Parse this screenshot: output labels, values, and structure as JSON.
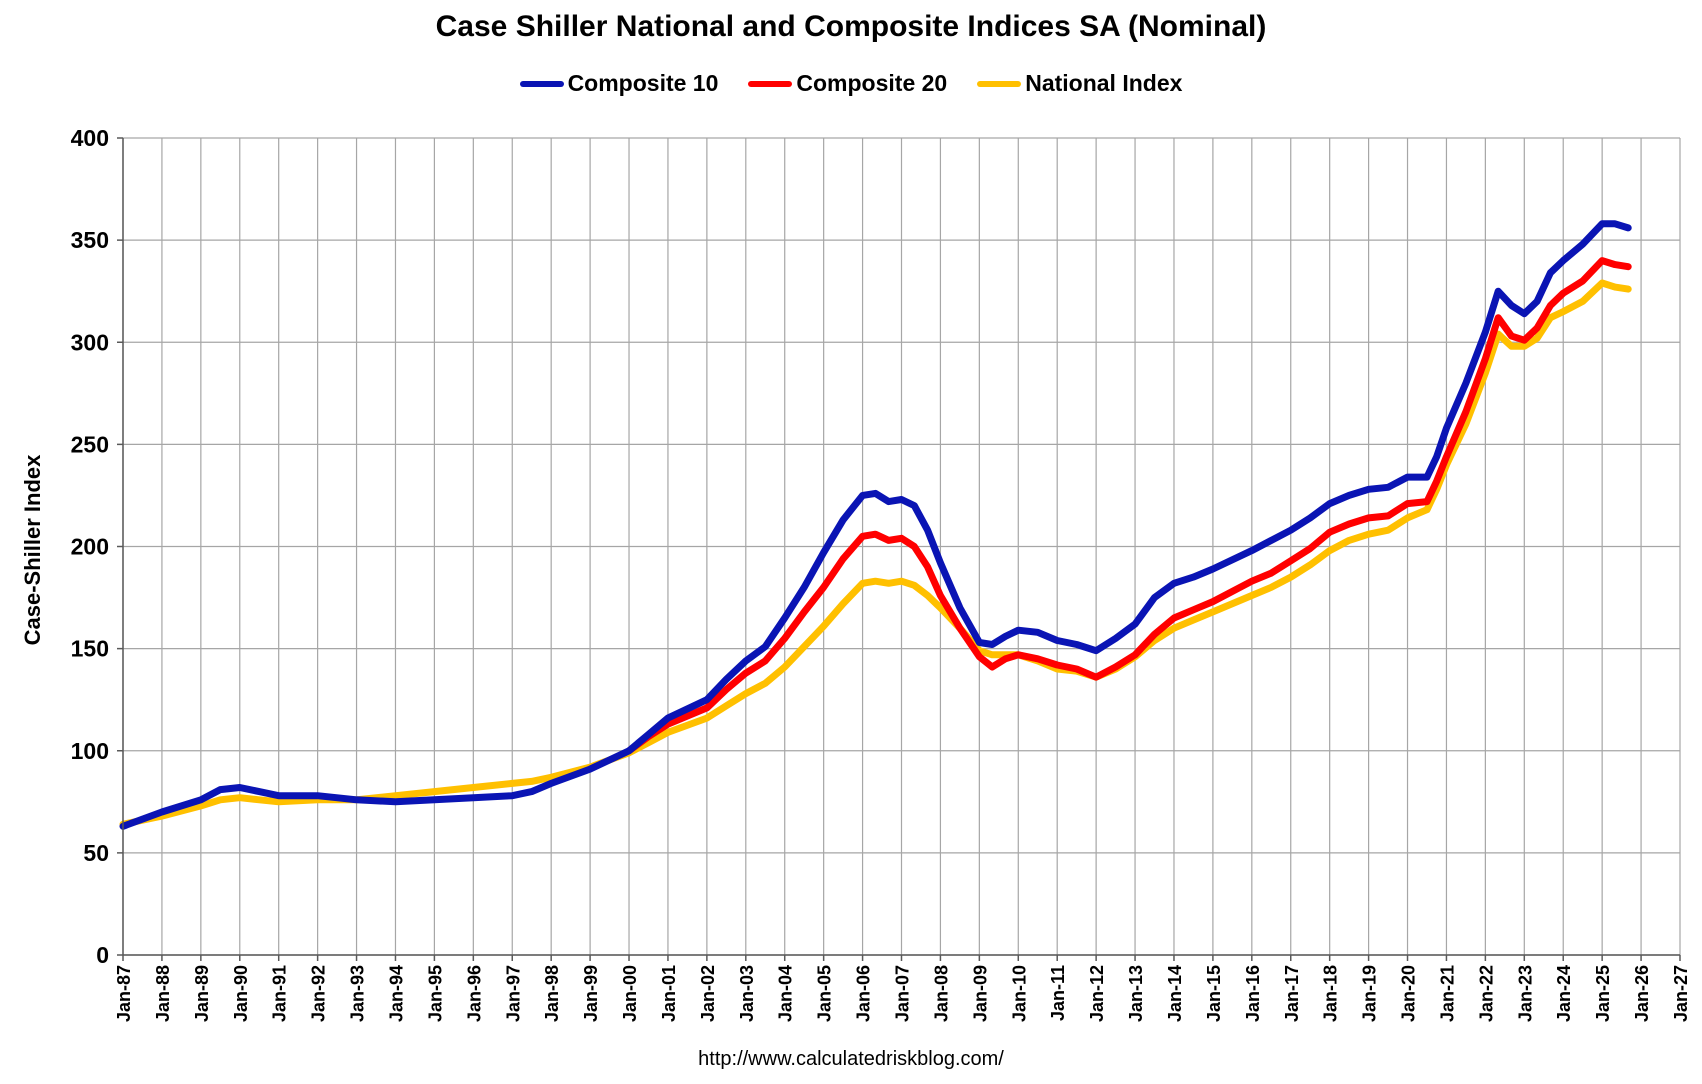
{
  "title": "Case Shiller National and Composite Indices SA (Nominal)",
  "source": "http://www.calculatedriskblog.com/",
  "chart_data": {
    "type": "line",
    "title": "Case Shiller National and Composite Indices SA (Nominal)",
    "xlabel": "",
    "ylabel": "Case-Shiller Index",
    "ylim": [
      0,
      400
    ],
    "yticks": [
      0,
      50,
      100,
      150,
      200,
      250,
      300,
      350,
      400
    ],
    "xlim": [
      1987,
      2027
    ],
    "xtick_labels": [
      "Jan-87",
      "Jan-88",
      "Jan-89",
      "Jan-90",
      "Jan-91",
      "Jan-92",
      "Jan-93",
      "Jan-94",
      "Jan-95",
      "Jan-96",
      "Jan-97",
      "Jan-98",
      "Jan-99",
      "Jan-00",
      "Jan-01",
      "Jan-02",
      "Jan-03",
      "Jan-04",
      "Jan-05",
      "Jan-06",
      "Jan-07",
      "Jan-08",
      "Jan-09",
      "Jan-10",
      "Jan-11",
      "Jan-12",
      "Jan-13",
      "Jan-14",
      "Jan-15",
      "Jan-16",
      "Jan-17",
      "Jan-18",
      "Jan-19",
      "Jan-20",
      "Jan-21",
      "Jan-22",
      "Jan-23",
      "Jan-24",
      "Jan-25",
      "Jan-26",
      "Jan-27"
    ],
    "grid": true,
    "legend": "top-center",
    "series": [
      {
        "name": "Composite 10",
        "color": "#0a14b4",
        "points": [
          [
            1987.0,
            63
          ],
          [
            1988.0,
            70
          ],
          [
            1989.0,
            76
          ],
          [
            1989.5,
            81
          ],
          [
            1990.0,
            82
          ],
          [
            1990.5,
            80
          ],
          [
            1991.0,
            78
          ],
          [
            1992.0,
            78
          ],
          [
            1993.0,
            76
          ],
          [
            1994.0,
            75
          ],
          [
            1995.0,
            76
          ],
          [
            1996.0,
            77
          ],
          [
            1997.0,
            78
          ],
          [
            1997.5,
            80
          ],
          [
            1998.0,
            84
          ],
          [
            1999.0,
            91
          ],
          [
            2000.0,
            100
          ],
          [
            2000.5,
            108
          ],
          [
            2001.0,
            116
          ],
          [
            2002.0,
            125
          ],
          [
            2002.5,
            135
          ],
          [
            2003.0,
            144
          ],
          [
            2003.5,
            151
          ],
          [
            2004.0,
            165
          ],
          [
            2004.5,
            180
          ],
          [
            2005.0,
            197
          ],
          [
            2005.5,
            213
          ],
          [
            2006.0,
            225
          ],
          [
            2006.33,
            226
          ],
          [
            2006.67,
            222
          ],
          [
            2007.0,
            223
          ],
          [
            2007.33,
            220
          ],
          [
            2007.67,
            208
          ],
          [
            2008.0,
            192
          ],
          [
            2008.5,
            170
          ],
          [
            2009.0,
            153
          ],
          [
            2009.33,
            152
          ],
          [
            2009.67,
            156
          ],
          [
            2010.0,
            159
          ],
          [
            2010.5,
            158
          ],
          [
            2011.0,
            154
          ],
          [
            2011.5,
            152
          ],
          [
            2012.0,
            149
          ],
          [
            2012.5,
            155
          ],
          [
            2013.0,
            162
          ],
          [
            2013.5,
            175
          ],
          [
            2014.0,
            182
          ],
          [
            2014.5,
            185
          ],
          [
            2015.0,
            189
          ],
          [
            2016.0,
            198
          ],
          [
            2016.5,
            203
          ],
          [
            2017.0,
            208
          ],
          [
            2017.5,
            214
          ],
          [
            2018.0,
            221
          ],
          [
            2018.5,
            225
          ],
          [
            2019.0,
            228
          ],
          [
            2019.5,
            229
          ],
          [
            2020.0,
            234
          ],
          [
            2020.5,
            234
          ],
          [
            2020.75,
            244
          ],
          [
            2021.0,
            258
          ],
          [
            2021.5,
            280
          ],
          [
            2022.0,
            305
          ],
          [
            2022.33,
            325
          ],
          [
            2022.67,
            318
          ],
          [
            2023.0,
            314
          ],
          [
            2023.33,
            320
          ],
          [
            2023.67,
            334
          ],
          [
            2024.0,
            340
          ],
          [
            2024.5,
            348
          ],
          [
            2025.0,
            358
          ],
          [
            2025.33,
            358
          ],
          [
            2025.67,
            356
          ]
        ]
      },
      {
        "name": "Composite 20",
        "color": "#ff0000",
        "points": [
          [
            2000.0,
            100
          ],
          [
            2000.5,
            107
          ],
          [
            2001.0,
            113
          ],
          [
            2002.0,
            121
          ],
          [
            2002.5,
            130
          ],
          [
            2003.0,
            138
          ],
          [
            2003.5,
            144
          ],
          [
            2004.0,
            155
          ],
          [
            2004.5,
            168
          ],
          [
            2005.0,
            180
          ],
          [
            2005.5,
            194
          ],
          [
            2006.0,
            205
          ],
          [
            2006.33,
            206
          ],
          [
            2006.67,
            203
          ],
          [
            2007.0,
            204
          ],
          [
            2007.33,
            200
          ],
          [
            2007.67,
            190
          ],
          [
            2008.0,
            176
          ],
          [
            2008.5,
            160
          ],
          [
            2009.0,
            146
          ],
          [
            2009.33,
            141
          ],
          [
            2009.67,
            145
          ],
          [
            2010.0,
            147
          ],
          [
            2010.5,
            145
          ],
          [
            2011.0,
            142
          ],
          [
            2011.5,
            140
          ],
          [
            2012.0,
            136
          ],
          [
            2012.5,
            141
          ],
          [
            2013.0,
            147
          ],
          [
            2013.5,
            157
          ],
          [
            2014.0,
            165
          ],
          [
            2014.5,
            169
          ],
          [
            2015.0,
            173
          ],
          [
            2016.0,
            183
          ],
          [
            2016.5,
            187
          ],
          [
            2017.0,
            193
          ],
          [
            2017.5,
            199
          ],
          [
            2018.0,
            207
          ],
          [
            2018.5,
            211
          ],
          [
            2019.0,
            214
          ],
          [
            2019.5,
            215
          ],
          [
            2020.0,
            221
          ],
          [
            2020.5,
            222
          ],
          [
            2020.75,
            232
          ],
          [
            2021.0,
            244
          ],
          [
            2021.5,
            266
          ],
          [
            2022.0,
            292
          ],
          [
            2022.33,
            312
          ],
          [
            2022.67,
            303
          ],
          [
            2023.0,
            301
          ],
          [
            2023.33,
            307
          ],
          [
            2023.67,
            318
          ],
          [
            2024.0,
            324
          ],
          [
            2024.5,
            330
          ],
          [
            2025.0,
            340
          ],
          [
            2025.33,
            338
          ],
          [
            2025.67,
            337
          ]
        ]
      },
      {
        "name": "National Index",
        "color": "#ffc000",
        "points": [
          [
            1987.0,
            64
          ],
          [
            1988.0,
            68
          ],
          [
            1989.0,
            73
          ],
          [
            1989.5,
            76
          ],
          [
            1990.0,
            77
          ],
          [
            1990.5,
            76
          ],
          [
            1991.0,
            75
          ],
          [
            1992.0,
            76
          ],
          [
            1993.0,
            76
          ],
          [
            1994.0,
            78
          ],
          [
            1995.0,
            80
          ],
          [
            1996.0,
            82
          ],
          [
            1997.0,
            84
          ],
          [
            1997.5,
            85
          ],
          [
            1998.0,
            87
          ],
          [
            1999.0,
            92
          ],
          [
            2000.0,
            99
          ],
          [
            2000.5,
            104
          ],
          [
            2001.0,
            109
          ],
          [
            2002.0,
            116
          ],
          [
            2002.5,
            122
          ],
          [
            2003.0,
            128
          ],
          [
            2003.5,
            133
          ],
          [
            2004.0,
            141
          ],
          [
            2004.5,
            151
          ],
          [
            2005.0,
            161
          ],
          [
            2005.5,
            172
          ],
          [
            2006.0,
            182
          ],
          [
            2006.33,
            183
          ],
          [
            2006.67,
            182
          ],
          [
            2007.0,
            183
          ],
          [
            2007.33,
            181
          ],
          [
            2007.67,
            176
          ],
          [
            2008.0,
            170
          ],
          [
            2008.5,
            160
          ],
          [
            2009.0,
            149
          ],
          [
            2009.33,
            147
          ],
          [
            2009.67,
            147
          ],
          [
            2010.0,
            147
          ],
          [
            2010.5,
            144
          ],
          [
            2011.0,
            140
          ],
          [
            2011.5,
            139
          ],
          [
            2012.0,
            136
          ],
          [
            2012.5,
            140
          ],
          [
            2013.0,
            146
          ],
          [
            2013.5,
            154
          ],
          [
            2014.0,
            160
          ],
          [
            2014.5,
            164
          ],
          [
            2015.0,
            168
          ],
          [
            2016.0,
            176
          ],
          [
            2016.5,
            180
          ],
          [
            2017.0,
            185
          ],
          [
            2017.5,
            191
          ],
          [
            2018.0,
            198
          ],
          [
            2018.5,
            203
          ],
          [
            2019.0,
            206
          ],
          [
            2019.5,
            208
          ],
          [
            2020.0,
            214
          ],
          [
            2020.5,
            218
          ],
          [
            2020.75,
            228
          ],
          [
            2021.0,
            240
          ],
          [
            2021.5,
            260
          ],
          [
            2022.0,
            285
          ],
          [
            2022.33,
            304
          ],
          [
            2022.67,
            298
          ],
          [
            2023.0,
            298
          ],
          [
            2023.33,
            302
          ],
          [
            2023.67,
            312
          ],
          [
            2024.0,
            315
          ],
          [
            2024.5,
            320
          ],
          [
            2025.0,
            329
          ],
          [
            2025.33,
            327
          ],
          [
            2025.67,
            326
          ]
        ]
      }
    ]
  }
}
